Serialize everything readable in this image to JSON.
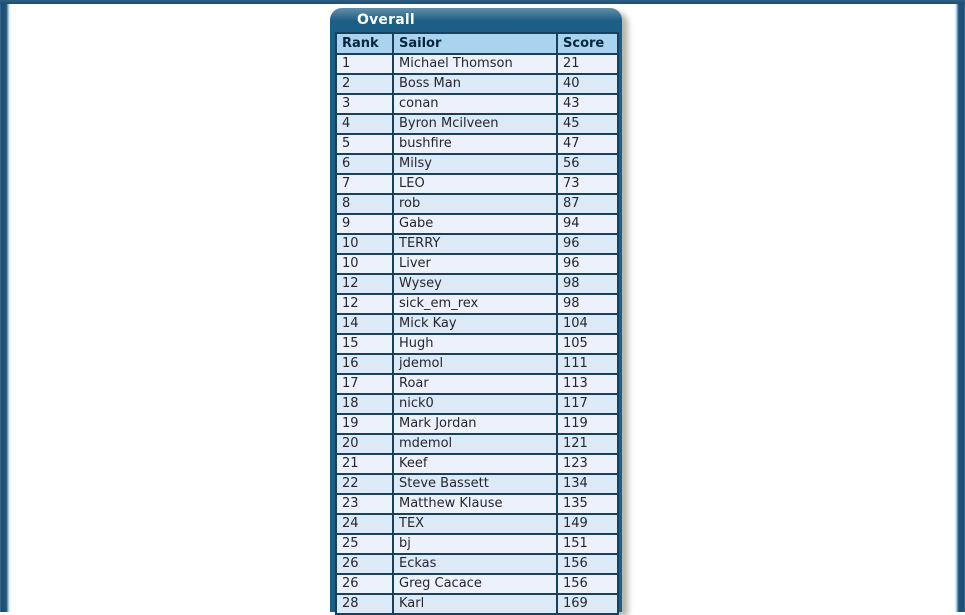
{
  "panel": {
    "title": "Overall"
  },
  "table": {
    "columns": [
      "Rank",
      "Sailor",
      "Score"
    ],
    "rows": [
      [
        "1",
        "Michael Thomson",
        "21"
      ],
      [
        "2",
        "Boss Man",
        "40"
      ],
      [
        "3",
        "conan",
        "43"
      ],
      [
        "4",
        "Byron Mcilveen",
        "45"
      ],
      [
        "5",
        "bushfire",
        "47"
      ],
      [
        "6",
        "Milsy",
        "56"
      ],
      [
        "7",
        "LEO",
        "73"
      ],
      [
        "8",
        "rob",
        "87"
      ],
      [
        "9",
        "Gabe",
        "94"
      ],
      [
        "10",
        "TERRY",
        "96"
      ],
      [
        "10",
        "Liver",
        "96"
      ],
      [
        "12",
        "Wysey",
        "98"
      ],
      [
        "12",
        "sick_em_rex",
        "98"
      ],
      [
        "14",
        "Mick Kay",
        "104"
      ],
      [
        "15",
        "Hugh",
        "105"
      ],
      [
        "16",
        "jdemol",
        "111"
      ],
      [
        "17",
        "Roar",
        "113"
      ],
      [
        "18",
        "nick0",
        "117"
      ],
      [
        "19",
        "Mark Jordan",
        "119"
      ],
      [
        "20",
        "mdemol",
        "121"
      ],
      [
        "21",
        "Keef",
        "123"
      ],
      [
        "22",
        "Steve Bassett",
        "134"
      ],
      [
        "23",
        "Matthew Klause",
        "135"
      ],
      [
        "24",
        "TEX",
        "149"
      ],
      [
        "25",
        "bj",
        "151"
      ],
      [
        "26",
        "Eckas",
        "156"
      ],
      [
        "26",
        "Greg Cacace",
        "156"
      ],
      [
        "28",
        "Karl",
        "169"
      ]
    ]
  },
  "colors": {
    "edge": "#1e4d73",
    "panel": "#1d5e85",
    "grid": "#17415f",
    "header_bg": "#a9d3ee",
    "header_text": "#07253f",
    "row_odd": "#ecf1fb",
    "row_even": "#dce9f6",
    "body_text": "#26262e",
    "title_text": "#ffffff"
  }
}
